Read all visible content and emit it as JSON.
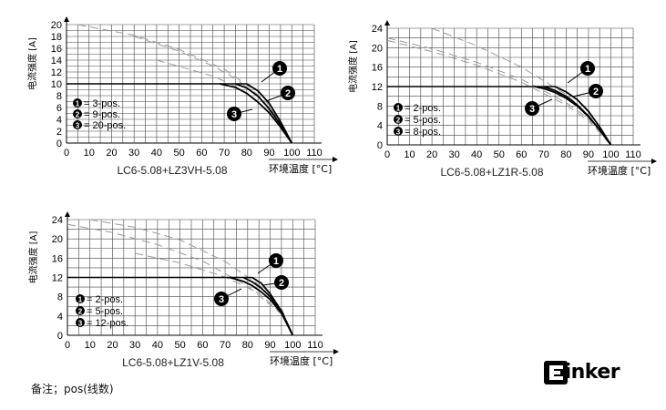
{
  "chart_data": [
    {
      "type": "line",
      "title": "LC6-5.08+LZ3VH-5.08",
      "ylabel": "电流强度 [A]",
      "xlabel": "环境温度 [°C]",
      "xlim": [
        0,
        110
      ],
      "ylim": [
        0,
        20
      ],
      "xticks": [
        0,
        10,
        20,
        30,
        40,
        50,
        60,
        70,
        80,
        90,
        100,
        110
      ],
      "yticks": [
        0,
        2,
        4,
        6,
        8,
        10,
        12,
        14,
        16,
        18,
        20
      ],
      "grid": true,
      "legend": [
        "= 3-pos.",
        "= 9-pos.",
        "= 20-pos."
      ],
      "markers": [
        "1",
        "2",
        "3"
      ],
      "limit": {
        "y": 10,
        "x": [
          0,
          80
        ]
      },
      "series": [
        {
          "marker": "1",
          "x": [
            80,
            85,
            90,
            95,
            100
          ],
          "y": [
            10,
            8.8,
            6.7,
            3.6,
            0
          ]
        },
        {
          "marker": "2",
          "x": [
            75,
            80,
            85,
            90,
            95,
            100
          ],
          "y": [
            10,
            9.3,
            7.9,
            5.8,
            3.1,
            0
          ]
        },
        {
          "marker": "3",
          "x": [
            68,
            75,
            80,
            85,
            90,
            95,
            100
          ],
          "y": [
            10,
            9.4,
            8.4,
            6.9,
            5.1,
            2.7,
            0
          ]
        }
      ],
      "derating": [
        {
          "x": [
            5,
            30,
            50,
            70,
            80,
            90,
            100
          ],
          "y": [
            20,
            18.2,
            15.8,
            12.5,
            9.8,
            6.4,
            0
          ]
        },
        {
          "x": [
            30,
            50,
            65,
            75,
            85,
            95,
            100
          ],
          "y": [
            18,
            15.5,
            13,
            10.9,
            7.9,
            3.1,
            0
          ]
        },
        {
          "x": [
            40,
            55,
            65,
            75,
            85,
            95,
            100
          ],
          "y": [
            14,
            12.4,
            11.3,
            9.6,
            7.1,
            2.8,
            0
          ]
        }
      ]
    },
    {
      "type": "line",
      "title": "LC6-5.08+LZ1R-5.08",
      "ylabel": "电流强度 [A]",
      "xlabel": "环境温度 [°C]",
      "xlim": [
        0,
        110
      ],
      "ylim": [
        0,
        24
      ],
      "xticks": [
        0,
        10,
        20,
        30,
        40,
        50,
        60,
        70,
        80,
        90,
        100,
        110
      ],
      "yticks": [
        0,
        4,
        8,
        12,
        16,
        20,
        24
      ],
      "grid": true,
      "legend": [
        "= 2-pos.",
        "= 5-pos.",
        "= 8-pos."
      ],
      "markers": [
        "1",
        "2",
        "3"
      ],
      "limit": {
        "y": 12,
        "x": [
          0,
          75
        ]
      },
      "series": [
        {
          "marker": "1",
          "x": [
            75,
            80,
            85,
            90,
            95,
            100
          ],
          "y": [
            12,
            10.9,
            9.3,
            6.9,
            3.7,
            0
          ]
        },
        {
          "marker": "2",
          "x": [
            70,
            75,
            80,
            85,
            90,
            95,
            100
          ],
          "y": [
            12,
            11.2,
            10,
            8.2,
            5.9,
            3.1,
            0
          ]
        },
        {
          "marker": "3",
          "x": [
            66,
            70,
            75,
            80,
            85,
            90,
            95,
            100
          ],
          "y": [
            12,
            11.6,
            10.8,
            9.6,
            8,
            5.8,
            3.1,
            0
          ]
        }
      ],
      "derating": [
        {
          "x": [
            20,
            40,
            60,
            80,
            90,
            100
          ],
          "y": [
            24,
            20.4,
            16,
            10.4,
            6.2,
            0
          ]
        },
        {
          "x": [
            0,
            20,
            40,
            60,
            80,
            90,
            100
          ],
          "y": [
            22,
            19.8,
            17,
            13.5,
            8.7,
            5.4,
            0
          ]
        },
        {
          "x": [
            0,
            20,
            40,
            60,
            80,
            90,
            100
          ],
          "y": [
            21.5,
            19.2,
            16.4,
            12.9,
            8.2,
            5,
            0
          ]
        }
      ]
    },
    {
      "type": "line",
      "title": "LC6-5.08+LZ1V-5.08",
      "ylabel": "电流强度 [A]",
      "xlabel": "环境温度 [°C]",
      "xlim": [
        0,
        110
      ],
      "ylim": [
        0,
        24
      ],
      "xticks": [
        0,
        10,
        20,
        30,
        40,
        50,
        60,
        70,
        80,
        90,
        100,
        110
      ],
      "yticks": [
        0,
        4,
        8,
        12,
        16,
        20,
        24
      ],
      "grid": true,
      "legend": [
        "= 2-pos.",
        "= 5-pos.",
        "= 12-pos."
      ],
      "markers": [
        "1",
        "2",
        "3"
      ],
      "limit": {
        "y": 12,
        "x": [
          0,
          82
        ]
      },
      "series": [
        {
          "marker": "1",
          "x": [
            82,
            86,
            90,
            95,
            100
          ],
          "y": [
            12,
            10.8,
            8.6,
            5,
            0
          ]
        },
        {
          "marker": "2",
          "x": [
            78,
            82,
            86,
            90,
            95,
            100
          ],
          "y": [
            12,
            11.1,
            9.8,
            8,
            5,
            0
          ]
        },
        {
          "marker": "3",
          "x": [
            72,
            78,
            82,
            86,
            90,
            95,
            100
          ],
          "y": [
            12,
            11.2,
            10.3,
            9,
            7.4,
            4.6,
            0
          ]
        }
      ],
      "derating": [
        {
          "x": [
            10,
            30,
            50,
            70,
            85,
            95,
            100
          ],
          "y": [
            24,
            22.4,
            19.8,
            15.3,
            10.5,
            5.6,
            0
          ]
        },
        {
          "x": [
            0,
            20,
            40,
            60,
            80,
            95,
            100
          ],
          "y": [
            23,
            21.3,
            18.8,
            15.4,
            10.2,
            4.4,
            0
          ]
        },
        {
          "x": [
            30,
            50,
            70,
            85,
            95,
            100
          ],
          "y": [
            17,
            15,
            12.1,
            8.7,
            4.5,
            0
          ]
        }
      ]
    }
  ],
  "footnote": "备注；pos(线数)",
  "logo_text": "Elinker",
  "colors": {
    "curve": "#000000",
    "grid": "#444444",
    "dashed": "#999999"
  }
}
